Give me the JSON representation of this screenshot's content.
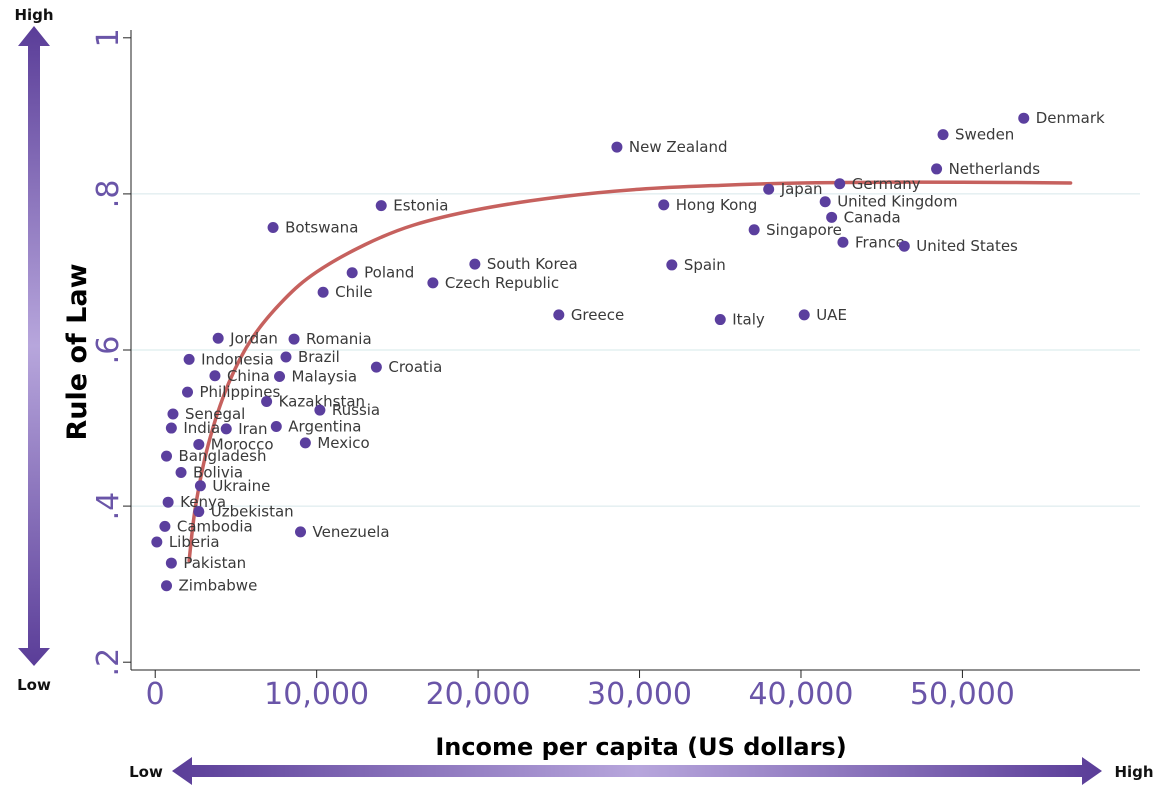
{
  "chart_data": {
    "type": "scatter",
    "xlabel": "Income per capita (US dollars)",
    "ylabel": "Rule of Law",
    "xlim": [
      -1500,
      61000
    ],
    "ylim": [
      0.19,
      1.01
    ],
    "x_ticks": [
      {
        "value": 0,
        "label": "0"
      },
      {
        "value": 10000,
        "label": "10,000"
      },
      {
        "value": 20000,
        "label": "20,000"
      },
      {
        "value": 30000,
        "label": "30,000"
      },
      {
        "value": 40000,
        "label": "40,000"
      },
      {
        "value": 50000,
        "label": "50,000"
      }
    ],
    "y_ticks": [
      {
        "value": 0.2,
        "label": ".2"
      },
      {
        "value": 0.4,
        "label": ".4"
      },
      {
        "value": 0.6,
        "label": ".6"
      },
      {
        "value": 0.8,
        "label": ".8"
      },
      {
        "value": 1.0,
        "label": "1"
      }
    ],
    "grid": "horizontal",
    "point_color": "#5b3f9e",
    "curve_color": "#c0504d",
    "arrow_color": "#6a4fa8",
    "x_arrow": {
      "low_label": "Low",
      "high_label": "High"
    },
    "y_arrow": {
      "low_label": "Low",
      "high_label": "High"
    },
    "points": [
      {
        "name": "Denmark",
        "x": 53800,
        "y": 0.897
      },
      {
        "name": "Sweden",
        "x": 48800,
        "y": 0.876
      },
      {
        "name": "Netherlands",
        "x": 48400,
        "y": 0.832
      },
      {
        "name": "New Zealand",
        "x": 28600,
        "y": 0.86
      },
      {
        "name": "Germany",
        "x": 42400,
        "y": 0.813
      },
      {
        "name": "Japan",
        "x": 38000,
        "y": 0.806
      },
      {
        "name": "United Kingdom",
        "x": 41500,
        "y": 0.79
      },
      {
        "name": "Canada",
        "x": 41900,
        "y": 0.77
      },
      {
        "name": "Hong Kong",
        "x": 31500,
        "y": 0.786
      },
      {
        "name": "Singapore",
        "x": 37100,
        "y": 0.754
      },
      {
        "name": "France",
        "x": 42600,
        "y": 0.738
      },
      {
        "name": "United States",
        "x": 46400,
        "y": 0.733
      },
      {
        "name": "Estonia",
        "x": 14000,
        "y": 0.785
      },
      {
        "name": "Botswana",
        "x": 7300,
        "y": 0.757
      },
      {
        "name": "South Korea",
        "x": 19800,
        "y": 0.71
      },
      {
        "name": "Spain",
        "x": 32000,
        "y": 0.709
      },
      {
        "name": "Poland",
        "x": 12200,
        "y": 0.699
      },
      {
        "name": "Czech Republic",
        "x": 17200,
        "y": 0.686
      },
      {
        "name": "Chile",
        "x": 10400,
        "y": 0.674
      },
      {
        "name": "Greece",
        "x": 25000,
        "y": 0.645
      },
      {
        "name": "UAE",
        "x": 40200,
        "y": 0.645
      },
      {
        "name": "Italy",
        "x": 35000,
        "y": 0.639
      },
      {
        "name": "Jordan",
        "x": 3900,
        "y": 0.615
      },
      {
        "name": "Romania",
        "x": 8600,
        "y": 0.614
      },
      {
        "name": "Indonesia",
        "x": 2100,
        "y": 0.588
      },
      {
        "name": "Brazil",
        "x": 8100,
        "y": 0.591
      },
      {
        "name": "China",
        "x": 3700,
        "y": 0.567
      },
      {
        "name": "Malaysia",
        "x": 7700,
        "y": 0.566
      },
      {
        "name": "Croatia",
        "x": 13700,
        "y": 0.578
      },
      {
        "name": "Philippines",
        "x": 2000,
        "y": 0.546
      },
      {
        "name": "Kazakhstan",
        "x": 6900,
        "y": 0.534
      },
      {
        "name": "Russia",
        "x": 10200,
        "y": 0.523
      },
      {
        "name": "Senegal",
        "x": 1100,
        "y": 0.518
      },
      {
        "name": "India",
        "x": 1000,
        "y": 0.5
      },
      {
        "name": "Iran",
        "x": 4400,
        "y": 0.499
      },
      {
        "name": "Argentina",
        "x": 7500,
        "y": 0.502
      },
      {
        "name": "Morocco",
        "x": 2700,
        "y": 0.479
      },
      {
        "name": "Mexico",
        "x": 9300,
        "y": 0.481
      },
      {
        "name": "Bangladesh",
        "x": 700,
        "y": 0.464
      },
      {
        "name": "Bolivia",
        "x": 1600,
        "y": 0.443
      },
      {
        "name": "Ukraine",
        "x": 2800,
        "y": 0.426
      },
      {
        "name": "Kenya",
        "x": 800,
        "y": 0.405
      },
      {
        "name": "Uzbekistan",
        "x": 2700,
        "y": 0.393
      },
      {
        "name": "Cambodia",
        "x": 600,
        "y": 0.374
      },
      {
        "name": "Venezuela",
        "x": 9000,
        "y": 0.367
      },
      {
        "name": "Liberia",
        "x": 100,
        "y": 0.354
      },
      {
        "name": "Pakistan",
        "x": 1000,
        "y": 0.327
      },
      {
        "name": "Zimbabwe",
        "x": 700,
        "y": 0.298
      }
    ],
    "fit_curve": [
      {
        "x": 2100,
        "y": 0.33
      },
      {
        "x": 2500,
        "y": 0.4
      },
      {
        "x": 3300,
        "y": 0.48
      },
      {
        "x": 4500,
        "y": 0.555
      },
      {
        "x": 6000,
        "y": 0.615
      },
      {
        "x": 8000,
        "y": 0.665
      },
      {
        "x": 10000,
        "y": 0.7
      },
      {
        "x": 13000,
        "y": 0.735
      },
      {
        "x": 16000,
        "y": 0.76
      },
      {
        "x": 20000,
        "y": 0.78
      },
      {
        "x": 25000,
        "y": 0.796
      },
      {
        "x": 30000,
        "y": 0.806
      },
      {
        "x": 35000,
        "y": 0.811
      },
      {
        "x": 40000,
        "y": 0.814
      },
      {
        "x": 45000,
        "y": 0.815
      },
      {
        "x": 50000,
        "y": 0.815
      },
      {
        "x": 56700,
        "y": 0.814
      }
    ]
  }
}
